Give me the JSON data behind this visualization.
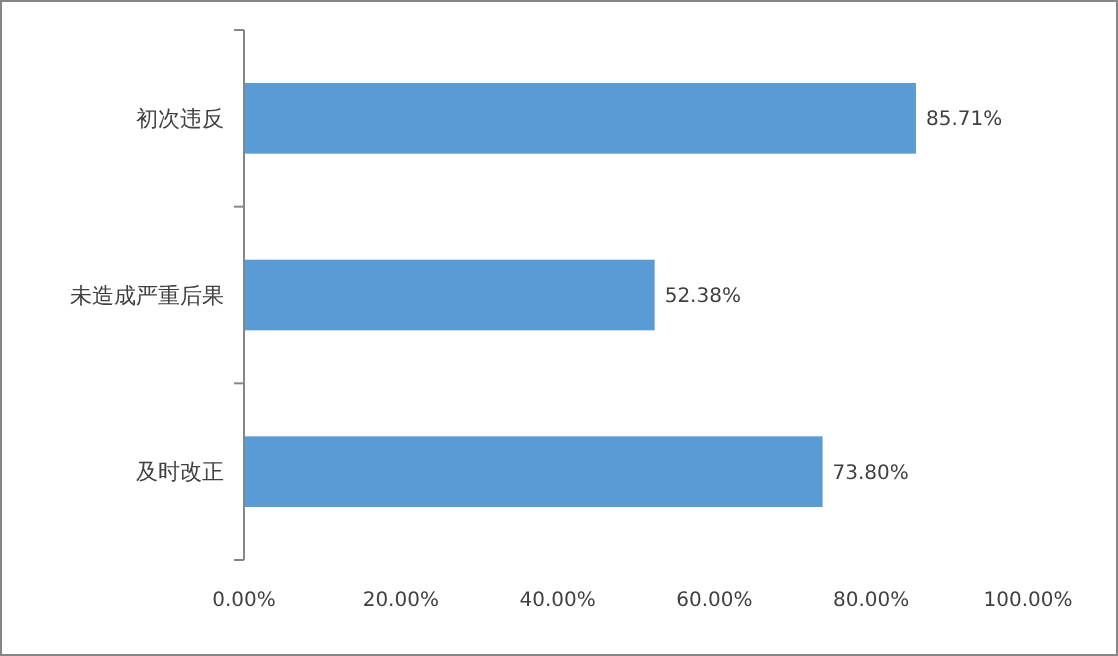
{
  "chart_data": {
    "type": "bar",
    "orientation": "horizontal",
    "categories": [
      "初次违反",
      "未造成严重后果",
      "及时改正"
    ],
    "values": [
      85.71,
      52.38,
      73.8
    ],
    "color": "#5b9bd5",
    "value_labels": [
      "85.71%",
      "52.38%",
      "73.80%"
    ],
    "xlim": [
      0,
      100
    ],
    "xticks": [
      {
        "value": 0,
        "label": "0.00%"
      },
      {
        "value": 20,
        "label": "20.00%"
      },
      {
        "value": 40,
        "label": "40.00%"
      },
      {
        "value": 60,
        "label": "60.00%"
      },
      {
        "value": 80,
        "label": "80.00%"
      },
      {
        "value": 100,
        "label": "100.00%"
      }
    ],
    "grid": false
  }
}
